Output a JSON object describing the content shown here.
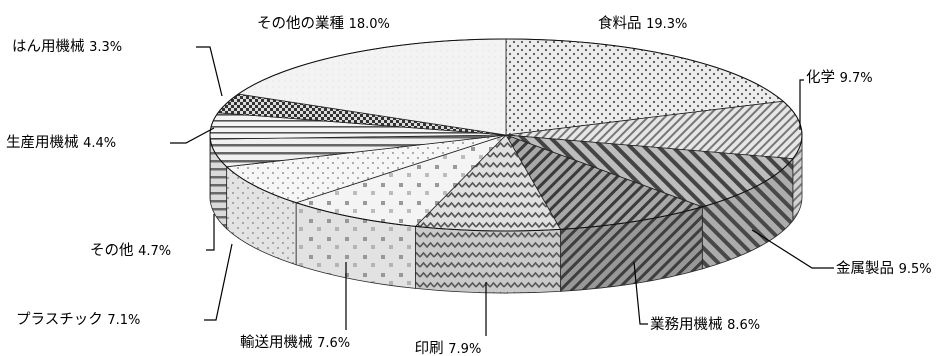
{
  "chart_data": {
    "type": "pie",
    "style": "3d-exploded-none",
    "unit": "%",
    "slices": [
      {
        "label": "食料品",
        "value": 19.3,
        "pct_text": "19.3%",
        "pattern": "dots",
        "color": "#e4e4e4"
      },
      {
        "label": "化学",
        "value": 9.7,
        "pct_text": "9.7%",
        "pattern": "diag-fine",
        "color": "#d6d6d6"
      },
      {
        "label": "金属製品",
        "value": 9.5,
        "pct_text": "9.5%",
        "pattern": "diag-bold",
        "color": "#9a9a9a"
      },
      {
        "label": "業務用機械",
        "value": 8.6,
        "pct_text": "8.6%",
        "pattern": "diag-rev",
        "color": "#8c8c8c"
      },
      {
        "label": "印刷",
        "value": 7.9,
        "pct_text": "7.9%",
        "pattern": "zigzag",
        "color": "#b4b4b4"
      },
      {
        "label": "輸送用機械",
        "value": 7.6,
        "pct_text": "7.6%",
        "pattern": "squares",
        "color": "#eeeeee"
      },
      {
        "label": "プラスチック",
        "value": 7.1,
        "pct_text": "7.1%",
        "pattern": "dots-light",
        "color": "#f2f2f2"
      },
      {
        "label": "その他",
        "value": 4.7,
        "pct_text": "4.7%",
        "pattern": "stripes-h",
        "color": "#c8c8c8"
      },
      {
        "label": "生産用機械",
        "value": 4.4,
        "pct_text": "4.4%",
        "pattern": "stripes-h2",
        "color": "#bdbdbd"
      },
      {
        "label": "はん用機械",
        "value": 3.3,
        "pct_text": "3.3%",
        "pattern": "checker",
        "color": "#5a5a5a"
      },
      {
        "label": "その他の業種",
        "value": 18.0,
        "pct_text": "18.0%",
        "pattern": "plain",
        "color": "#f0f0f0"
      }
    ],
    "legend": "none",
    "labels": "outside-with-leader-lines"
  }
}
